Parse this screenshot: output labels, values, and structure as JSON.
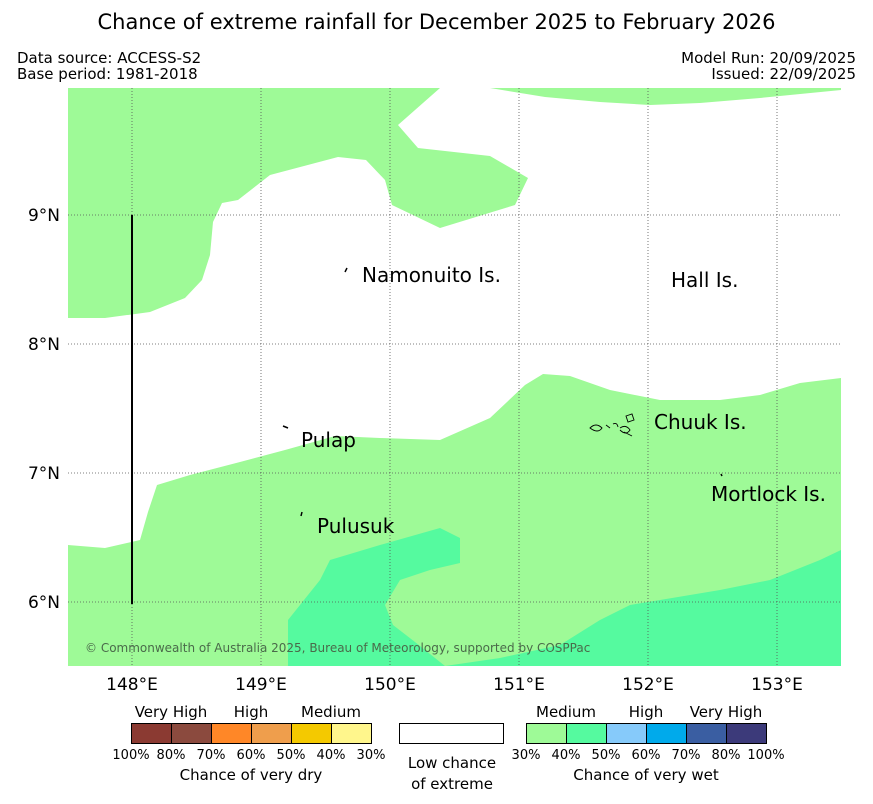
{
  "title": "Chance of extreme rainfall for December 2025 to February 2026",
  "meta": {
    "data_source": "Data source: ACCESS-S2",
    "base_period": "Base period: 1981-2018",
    "model_run": "Model Run: 20/09/2025",
    "issued": "Issued: 22/09/2025"
  },
  "map": {
    "copyright": "© Commonwealth of Australia 2025, Bureau of Meteorology, supported by COSPPac",
    "lon_labels": [
      "148°E",
      "149°E",
      "150°E",
      "151°E",
      "152°E",
      "153°E"
    ],
    "lat_labels": [
      "9°N",
      "8°N",
      "7°N",
      "6°N"
    ],
    "places": [
      {
        "name": "Namonuito Is."
      },
      {
        "name": "Hall Is."
      },
      {
        "name": "Chuuk Is."
      },
      {
        "name": "Pulap"
      },
      {
        "name": "Mortlock Is."
      },
      {
        "name": "Pulusuk"
      }
    ],
    "colors": {
      "medium_wet": "#9efa97",
      "high_wet": "#55fa9f",
      "low": "#ffffff"
    }
  },
  "legend": {
    "dry": {
      "headings": [
        "Very High",
        "High",
        "Medium"
      ],
      "ticks": [
        "100%",
        "80%",
        "70%",
        "60%",
        "50%",
        "40%",
        "30%"
      ],
      "colors": [
        "#8b3a32",
        "#8b4a3e",
        "#ff8727",
        "#ef9e4c",
        "#f4c900",
        "#fff68c"
      ],
      "caption": "Chance of very dry"
    },
    "neutral": {
      "caption_line1": "Low chance",
      "caption_line2": "of extreme",
      "color": "#ffffff"
    },
    "wet": {
      "headings": [
        "Medium",
        "High",
        "Very High"
      ],
      "ticks": [
        "30%",
        "40%",
        "50%",
        "60%",
        "70%",
        "80%",
        "100%"
      ],
      "colors": [
        "#9efa97",
        "#55fa9f",
        "#86cafa",
        "#00aaeb",
        "#3a5ea2",
        "#3c3a7a"
      ],
      "caption": "Chance of very wet"
    }
  }
}
